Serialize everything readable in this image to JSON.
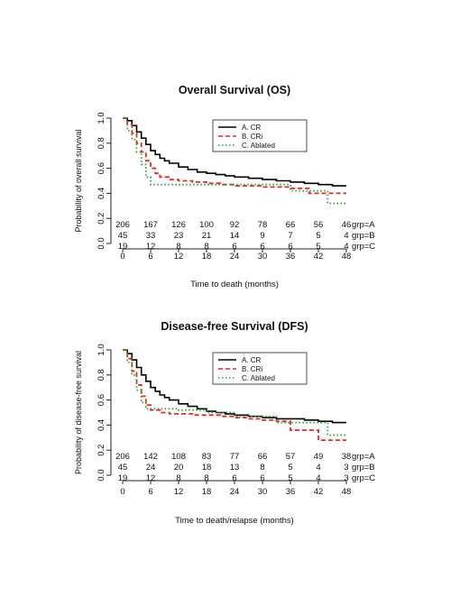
{
  "chart_data": [
    {
      "type": "line",
      "title": "Overall Survival (OS)",
      "xlabel": "Time to death (months)",
      "ylabel": "Probability of overall survival",
      "xlim": [
        0,
        48
      ],
      "ylim": [
        0,
        1
      ],
      "xticks": [
        "0",
        "6",
        "12",
        "18",
        "24",
        "30",
        "36",
        "42",
        "48"
      ],
      "yticks": [
        "0.0",
        "0.2",
        "0.4",
        "0.6",
        "0.8",
        "1.0"
      ],
      "grid": false,
      "legend_position": "top-right",
      "series": [
        {
          "name": "A. CR",
          "color": "#000000",
          "style": "solid",
          "x": [
            0,
            1,
            2,
            3,
            4,
            5,
            6,
            7,
            8,
            9,
            10,
            12,
            14,
            16,
            18,
            20,
            22,
            24,
            27,
            30,
            33,
            36,
            39,
            42,
            45,
            48
          ],
          "y": [
            1.0,
            0.98,
            0.94,
            0.89,
            0.84,
            0.79,
            0.74,
            0.71,
            0.68,
            0.66,
            0.64,
            0.61,
            0.59,
            0.57,
            0.56,
            0.55,
            0.54,
            0.53,
            0.52,
            0.51,
            0.5,
            0.49,
            0.48,
            0.47,
            0.46,
            0.46
          ]
        },
        {
          "name": "B. CRi",
          "color": "#e8281e",
          "style": "dashed",
          "x": [
            0,
            1,
            2,
            3,
            4,
            5,
            6,
            7,
            8,
            10,
            12,
            15,
            18,
            21,
            24,
            27,
            30,
            33,
            36,
            40,
            44,
            48
          ],
          "y": [
            1.0,
            0.95,
            0.88,
            0.8,
            0.73,
            0.66,
            0.6,
            0.56,
            0.53,
            0.51,
            0.5,
            0.49,
            0.48,
            0.47,
            0.46,
            0.46,
            0.45,
            0.45,
            0.44,
            0.4,
            0.4,
            0.4
          ]
        },
        {
          "name": "C. Ablated",
          "color": "#2e9e3e",
          "style": "dotted",
          "x": [
            0,
            1,
            2,
            3,
            4,
            5,
            6,
            8,
            12,
            18,
            24,
            30,
            34,
            36,
            42,
            44,
            48
          ],
          "y": [
            1.0,
            0.9,
            0.83,
            0.73,
            0.63,
            0.53,
            0.47,
            0.47,
            0.47,
            0.47,
            0.47,
            0.47,
            0.47,
            0.42,
            0.42,
            0.32,
            0.32
          ]
        }
      ],
      "risk_table": {
        "times": [
          "0",
          "6",
          "12",
          "18",
          "24",
          "30",
          "36",
          "42",
          "48"
        ],
        "rows": [
          {
            "label": "grp=A",
            "values": [
              "206",
              "167",
              "126",
              "100",
              "92",
              "78",
              "66",
              "56",
              "46"
            ]
          },
          {
            "label": "grp=B",
            "values": [
              "45",
              "33",
              "23",
              "21",
              "14",
              "9",
              "7",
              "5",
              "4"
            ]
          },
          {
            "label": "grp=C",
            "values": [
              "19",
              "12",
              "8",
              "8",
              "6",
              "6",
              "6",
              "5",
              "4"
            ]
          }
        ]
      }
    },
    {
      "type": "line",
      "title": "Disease-free Survival (DFS)",
      "xlabel": "Time to death/relapse (months)",
      "ylabel": "Probability of disease-free survival",
      "xlim": [
        0,
        48
      ],
      "ylim": [
        0,
        1
      ],
      "xticks": [
        "0",
        "6",
        "12",
        "18",
        "24",
        "30",
        "36",
        "42",
        "48"
      ],
      "yticks": [
        "0.0",
        "0.2",
        "0.4",
        "0.6",
        "0.8",
        "1.0"
      ],
      "grid": false,
      "legend_position": "top-right",
      "series": [
        {
          "name": "A. CR",
          "color": "#000000",
          "style": "solid",
          "x": [
            0,
            1,
            2,
            3,
            4,
            5,
            6,
            7,
            8,
            9,
            10,
            12,
            14,
            16,
            18,
            20,
            22,
            24,
            27,
            30,
            33,
            36,
            39,
            42,
            45,
            48
          ],
          "y": [
            1.0,
            0.97,
            0.92,
            0.86,
            0.8,
            0.75,
            0.7,
            0.67,
            0.64,
            0.62,
            0.6,
            0.57,
            0.55,
            0.53,
            0.51,
            0.5,
            0.49,
            0.48,
            0.47,
            0.46,
            0.45,
            0.45,
            0.44,
            0.43,
            0.42,
            0.42
          ]
        },
        {
          "name": "B. CRi",
          "color": "#e8281e",
          "style": "dashed",
          "x": [
            0,
            1,
            2,
            3,
            4,
            5,
            6,
            8,
            10,
            12,
            15,
            18,
            21,
            24,
            27,
            30,
            33,
            36,
            40,
            42,
            44,
            48
          ],
          "y": [
            1.0,
            0.93,
            0.83,
            0.72,
            0.63,
            0.56,
            0.52,
            0.5,
            0.49,
            0.49,
            0.48,
            0.48,
            0.47,
            0.46,
            0.45,
            0.44,
            0.43,
            0.36,
            0.36,
            0.28,
            0.28,
            0.28
          ]
        },
        {
          "name": "C. Ablated",
          "color": "#2e9e3e",
          "style": "dotted",
          "x": [
            0,
            1,
            2,
            3,
            4,
            5,
            6,
            8,
            12,
            18,
            24,
            30,
            33,
            36,
            42,
            44,
            48
          ],
          "y": [
            1.0,
            0.9,
            0.8,
            0.68,
            0.58,
            0.53,
            0.53,
            0.53,
            0.52,
            0.5,
            0.47,
            0.47,
            0.42,
            0.42,
            0.42,
            0.32,
            0.32
          ]
        }
      ],
      "risk_table": {
        "times": [
          "0",
          "6",
          "12",
          "18",
          "24",
          "30",
          "36",
          "42",
          "48"
        ],
        "rows": [
          {
            "label": "grp=A",
            "values": [
              "206",
              "142",
              "108",
              "83",
              "77",
              "66",
              "57",
              "49",
              "38"
            ]
          },
          {
            "label": "grp=B",
            "values": [
              "45",
              "24",
              "20",
              "18",
              "13",
              "8",
              "5",
              "4",
              "3"
            ]
          },
          {
            "label": "grp=C",
            "values": [
              "19",
              "12",
              "8",
              "8",
              "6",
              "6",
              "5",
              "4",
              "3"
            ]
          }
        ]
      }
    }
  ]
}
